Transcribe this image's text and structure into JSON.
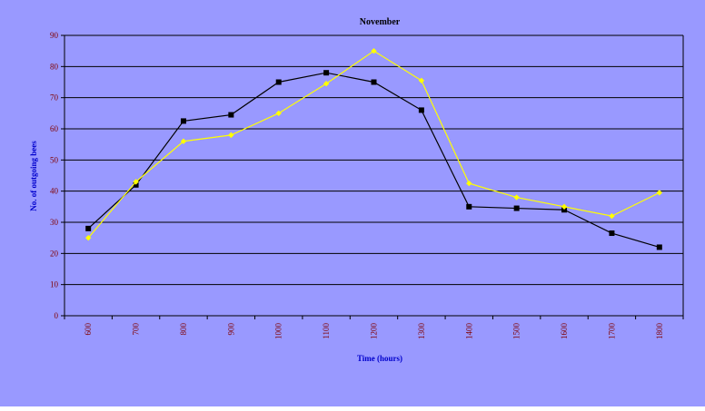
{
  "colors": {
    "background": "#9999ff",
    "gridline": "#000000",
    "axis_tick_label": "#800000",
    "axis_title": "#0000cc",
    "title": "#000000",
    "series_1": "#000000",
    "series_2": "#ffff00"
  },
  "chart_data": {
    "type": "line",
    "title": "November",
    "xlabel": "Time (hours)",
    "ylabel": "No. of outgoing bees",
    "ylim": [
      0,
      90
    ],
    "yticks": [
      0,
      10,
      20,
      30,
      40,
      50,
      60,
      70,
      80,
      90
    ],
    "grid": true,
    "legend": "none",
    "categories": [
      "600",
      "700",
      "800",
      "900",
      "1000",
      "1100",
      "1200",
      "1300",
      "1400",
      "1500",
      "1600",
      "1700",
      "1800"
    ],
    "series": [
      {
        "marker": "square",
        "color": "#000000",
        "values": [
          28,
          42,
          62.5,
          64.5,
          75,
          78,
          75,
          66,
          35,
          34.5,
          34,
          26.5,
          22
        ]
      },
      {
        "marker": "diamond",
        "color": "#ffff00",
        "values": [
          25,
          43,
          56,
          58,
          65,
          74.5,
          85,
          75.5,
          42.5,
          38,
          35,
          32,
          39.5
        ]
      }
    ]
  }
}
